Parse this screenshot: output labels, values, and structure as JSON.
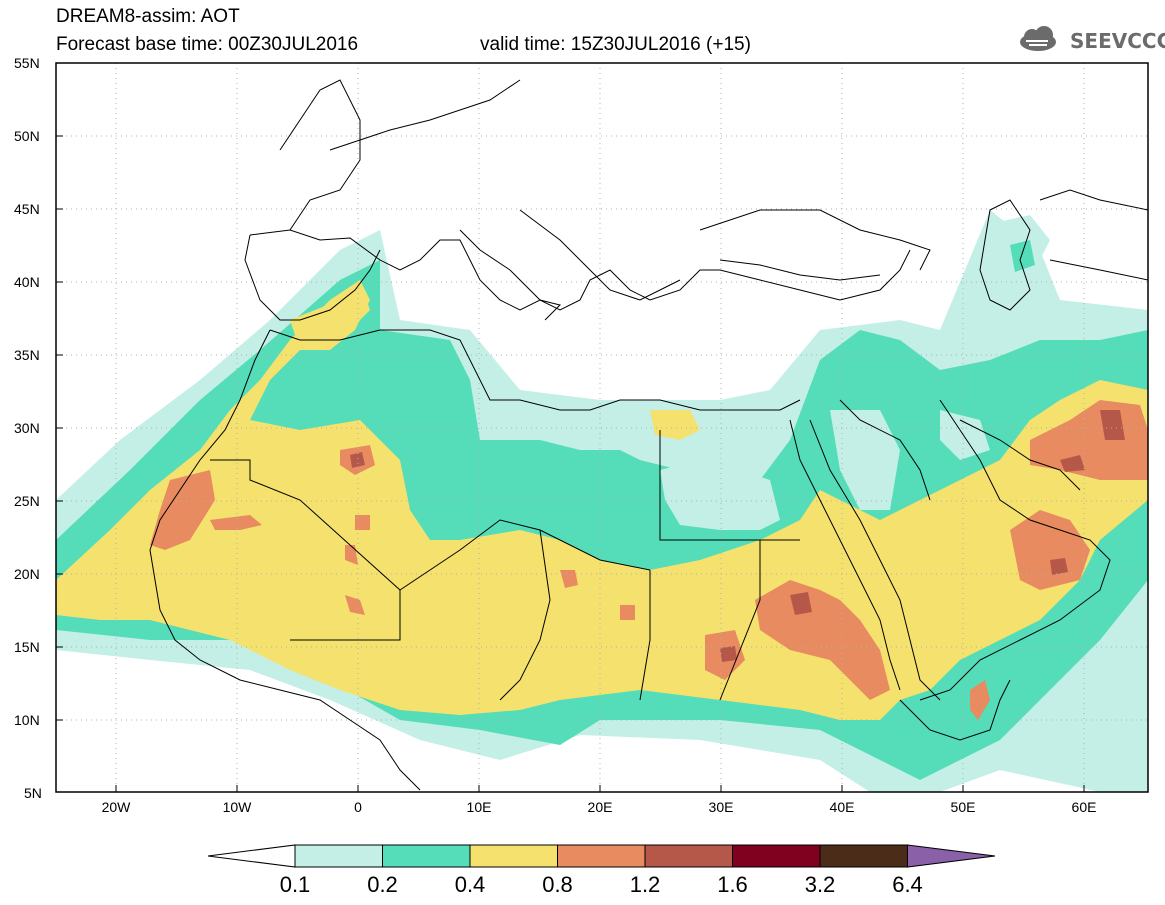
{
  "title": {
    "line1": "DREAM8-assim: AOT",
    "line2": "Forecast base time: 00Z30JUL2016",
    "valid": "valid time: 15Z30JUL2016 (+15)"
  },
  "logo": {
    "text": "SEEVCCC",
    "icon": "cloud-icon"
  },
  "map": {
    "lat_labels": [
      "55N",
      "50N",
      "45N",
      "40N",
      "35N",
      "30N",
      "25N",
      "20N",
      "15N",
      "10N",
      "5N"
    ],
    "lon_labels": [
      "20W",
      "10W",
      "0",
      "10E",
      "20E",
      "30E",
      "40E",
      "50E",
      "60E"
    ],
    "lat_range": [
      5,
      55
    ],
    "lon_range": [
      -25,
      65
    ]
  },
  "colorbar": {
    "levels": [
      "0.1",
      "0.2",
      "0.4",
      "0.8",
      "1.2",
      "1.6",
      "3.2",
      "6.4"
    ],
    "colors": [
      "#ffffff",
      "#c4efe6",
      "#55dcb8",
      "#f5e26e",
      "#e88b60",
      "#b5584a",
      "#800020",
      "#4a2c18",
      "#8a60a8"
    ]
  }
}
